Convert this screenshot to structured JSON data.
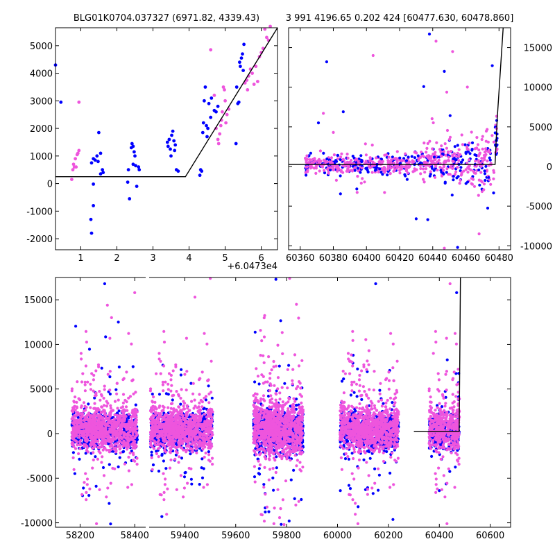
{
  "colors": {
    "blue": "#0000ff",
    "magenta": "#ee55dd",
    "model": "#000000"
  },
  "chart_data": [
    {
      "type": "scatter",
      "title": "BLG01K0704.037327 (6971.82, 4339.43)",
      "x_offset_label": "+6.0473e4",
      "xlim": [
        0.3,
        6.45
      ],
      "ylim": [
        -2400,
        5650
      ],
      "xticks": [
        1,
        2,
        3,
        4,
        5,
        6
      ],
      "yticks": [
        -2000,
        -1000,
        0,
        1000,
        2000,
        3000,
        4000,
        5000
      ],
      "grid": false,
      "series": [
        {
          "color": "blue",
          "points": [
            [
              0.3,
              4300
            ],
            [
              0.45,
              2950
            ],
            [
              1.3,
              750
            ],
            [
              1.35,
              900
            ],
            [
              1.4,
              850
            ],
            [
              1.45,
              1000
            ],
            [
              1.48,
              800
            ],
            [
              1.5,
              1850
            ],
            [
              1.55,
              1100
            ],
            [
              1.6,
              500
            ],
            [
              1.62,
              400
            ],
            [
              1.28,
              -1300
            ],
            [
              1.3,
              -1800
            ],
            [
              1.35,
              -800
            ],
            [
              1.35,
              -20
            ],
            [
              1.55,
              350
            ],
            [
              2.3,
              50
            ],
            [
              2.32,
              500
            ],
            [
              2.35,
              -550
            ],
            [
              2.4,
              1300
            ],
            [
              2.42,
              1450
            ],
            [
              2.45,
              1350
            ],
            [
              2.48,
              1150
            ],
            [
              2.5,
              1000
            ],
            [
              2.52,
              650
            ],
            [
              2.55,
              -100
            ],
            [
              2.6,
              600
            ],
            [
              2.62,
              500
            ],
            [
              2.45,
              700
            ],
            [
              3.4,
              1500
            ],
            [
              3.42,
              1350
            ],
            [
              3.45,
              1600
            ],
            [
              3.48,
              1250
            ],
            [
              3.5,
              1000
            ],
            [
              3.52,
              1750
            ],
            [
              3.55,
              1900
            ],
            [
              3.58,
              1550
            ],
            [
              3.6,
              1200
            ],
            [
              3.62,
              1400
            ],
            [
              3.65,
              500
            ],
            [
              3.7,
              450
            ],
            [
              4.3,
              300
            ],
            [
              4.32,
              500
            ],
            [
              4.35,
              450
            ],
            [
              4.38,
              1850
            ],
            [
              4.4,
              2200
            ],
            [
              4.42,
              3000
            ],
            [
              4.45,
              3500
            ],
            [
              4.48,
              2100
            ],
            [
              4.5,
              1700
            ],
            [
              4.52,
              2000
            ],
            [
              4.55,
              2900
            ],
            [
              4.6,
              2400
            ],
            [
              4.62,
              3100
            ],
            [
              4.7,
              2650
            ],
            [
              4.75,
              2600
            ],
            [
              4.8,
              2800
            ],
            [
              5.3,
              1450
            ],
            [
              5.32,
              3500
            ],
            [
              5.35,
              2900
            ],
            [
              5.38,
              2950
            ],
            [
              5.4,
              4400
            ],
            [
              5.42,
              4250
            ],
            [
              5.45,
              4550
            ],
            [
              5.48,
              4700
            ],
            [
              5.5,
              4100
            ],
            [
              5.52,
              5050
            ]
          ]
        },
        {
          "color": "magenta",
          "points": [
            [
              0.75,
              150
            ],
            [
              0.78,
              500
            ],
            [
              0.8,
              700
            ],
            [
              0.82,
              600
            ],
            [
              0.85,
              900
            ],
            [
              0.87,
              600
            ],
            [
              0.9,
              1050
            ],
            [
              0.92,
              1100
            ],
            [
              0.95,
              1200
            ],
            [
              0.95,
              2950
            ],
            [
              4.6,
              4850
            ],
            [
              4.7,
              3200
            ],
            [
              4.75,
              2000
            ],
            [
              4.8,
              1600
            ],
            [
              4.82,
              1450
            ],
            [
              4.85,
              1800
            ],
            [
              4.88,
              2100
            ],
            [
              4.9,
              2300
            ],
            [
              4.92,
              2600
            ],
            [
              4.95,
              3500
            ],
            [
              4.98,
              3400
            ],
            [
              5.0,
              3000
            ],
            [
              5.02,
              2200
            ],
            [
              5.05,
              2500
            ],
            [
              5.1,
              2700
            ],
            [
              5.55,
              3650
            ],
            [
              5.6,
              3750
            ],
            [
              5.62,
              3400
            ],
            [
              5.65,
              3900
            ],
            [
              5.7,
              4150
            ],
            [
              5.75,
              4000
            ],
            [
              5.8,
              3600
            ],
            [
              5.85,
              4250
            ],
            [
              5.9,
              3700
            ],
            [
              5.95,
              4600
            ],
            [
              6.0,
              4750
            ],
            [
              6.05,
              4900
            ],
            [
              6.1,
              5600
            ],
            [
              6.15,
              5300
            ],
            [
              6.2,
              5200
            ],
            [
              6.25,
              5700
            ]
          ]
        }
      ],
      "model": [
        [
          0.3,
          250
        ],
        [
          3.9,
          250
        ],
        [
          6.45,
          5700
        ]
      ]
    },
    {
      "type": "scatter",
      "title": "3 991 4196.65 0.202 424 [60477.630, 60478.860]",
      "xlim": [
        60353,
        60487
      ],
      "ylim": [
        -10500,
        17500
      ],
      "xticks": [
        60360,
        60380,
        60400,
        60420,
        60440,
        60460,
        60480
      ],
      "yticks": [
        -10000,
        -5000,
        0,
        5000,
        10000,
        15000
      ],
      "y_axis_side": "right",
      "grid": false,
      "model": [
        [
          60353,
          250
        ],
        [
          60477.6,
          250
        ],
        [
          60478.9,
          6000
        ],
        [
          60482.5,
          17500
        ]
      ]
    },
    {
      "type": "scatter",
      "xlim": [
        58110,
        60680
      ],
      "ylim": [
        -10500,
        17500
      ],
      "xticks": [
        58200,
        58400,
        59400,
        59600,
        59800,
        60000,
        60200,
        60400,
        60600
      ],
      "yticks": [
        -10000,
        -5000,
        0,
        5000,
        10000,
        15000
      ],
      "axis_break": [
        58440,
        59260
      ],
      "grid": false,
      "model": [
        [
          60300,
          250
        ],
        [
          60478,
          250
        ],
        [
          60483,
          17500
        ]
      ]
    }
  ]
}
